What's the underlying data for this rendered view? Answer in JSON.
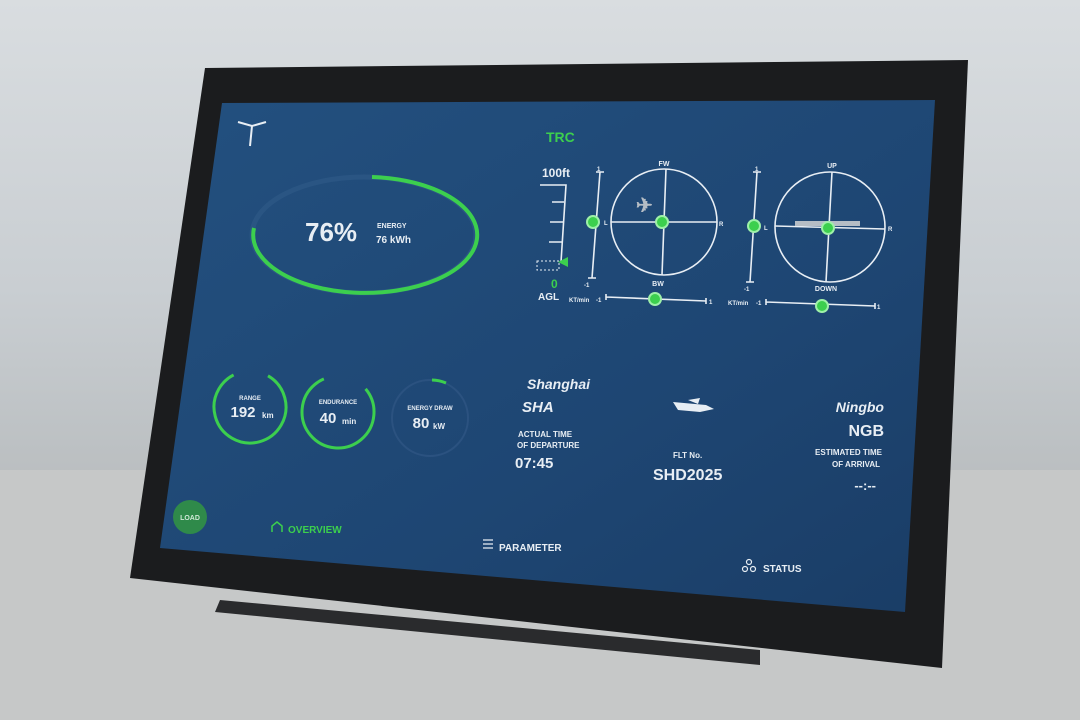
{
  "colors": {
    "screen": "#1e4673",
    "accent": "#3ccf4e",
    "text": "#e8eef4",
    "bezel": "#1b1c1e"
  },
  "header": {
    "logo_icon": "winged-figure-logo",
    "mode": "TRC"
  },
  "energy": {
    "percent": "76%",
    "label": "ENERGY",
    "value": "76 kWh",
    "fill_fraction": 0.76
  },
  "gauges": [
    {
      "label": "RANGE",
      "value": "192",
      "unit": "km",
      "fill_fraction": 0.85
    },
    {
      "label": "ENDURANCE",
      "value": "40",
      "unit": "min",
      "fill_fraction": 0.8
    },
    {
      "label": "ENERGY DRAW",
      "value": "80",
      "unit": "kW",
      "fill_fraction": 0.06
    }
  ],
  "altitude": {
    "top_label": "100ft",
    "value": "0",
    "unit": "AGL"
  },
  "attitude": {
    "left": {
      "top": "FW",
      "bottom": "BW",
      "left": "L",
      "right": "R",
      "scale_top": "1",
      "scale_bottom": "-1",
      "speed_label": "KT/min",
      "speed_min": "-1",
      "speed_max": "1"
    },
    "right": {
      "top": "UP",
      "bottom": "DOWN",
      "left": "L",
      "right": "R",
      "scale_top": "1",
      "scale_bottom": "-1",
      "speed_label": "KT/min",
      "speed_min": "-1",
      "speed_max": "1"
    }
  },
  "flight": {
    "origin_city": "Shanghai",
    "origin_code": "SHA",
    "departure_label_1": "ACTUAL TIME",
    "departure_label_2": "OF DEPARTURE",
    "departure_time": "07:45",
    "flt_label": "FLT No.",
    "flt_number": "SHD2025",
    "dest_city": "Ningbo",
    "dest_code": "NGB",
    "arrival_label_1": "ESTIMATED TIME",
    "arrival_label_2": "OF ARRIVAL",
    "arrival_time": "--:--",
    "aircraft_icon": "aircraft-icon"
  },
  "nav": {
    "load": "LOAD",
    "overview": "OVERVIEW",
    "parameter": "PARAMETER",
    "status": "STATUS",
    "active": "OVERVIEW"
  }
}
